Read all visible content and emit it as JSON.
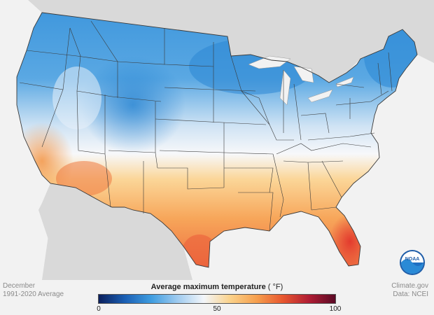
{
  "map": {
    "period_month": "December",
    "period_range": "1991-2020 Average",
    "source_site": "Climate.gov",
    "source_data": "Data: NCEI",
    "logo_text": "NOAA"
  },
  "legend": {
    "title": "Average maximum temperature",
    "unit": "( °F)",
    "min_label": "0",
    "mid_label": "50",
    "max_label": "100",
    "colors": [
      "#0b1f5c",
      "#1a5fb4",
      "#3f9de0",
      "#9fcbef",
      "#f3f6fa",
      "#fbd28a",
      "#f6a04e",
      "#e8572f",
      "#b01d34",
      "#5b0a26"
    ]
  },
  "colors": {
    "background": "#f2f2f2",
    "land_outside": "#d9d9d9",
    "water": "#f2f2f2",
    "state_border": "#3a3a3a"
  }
}
